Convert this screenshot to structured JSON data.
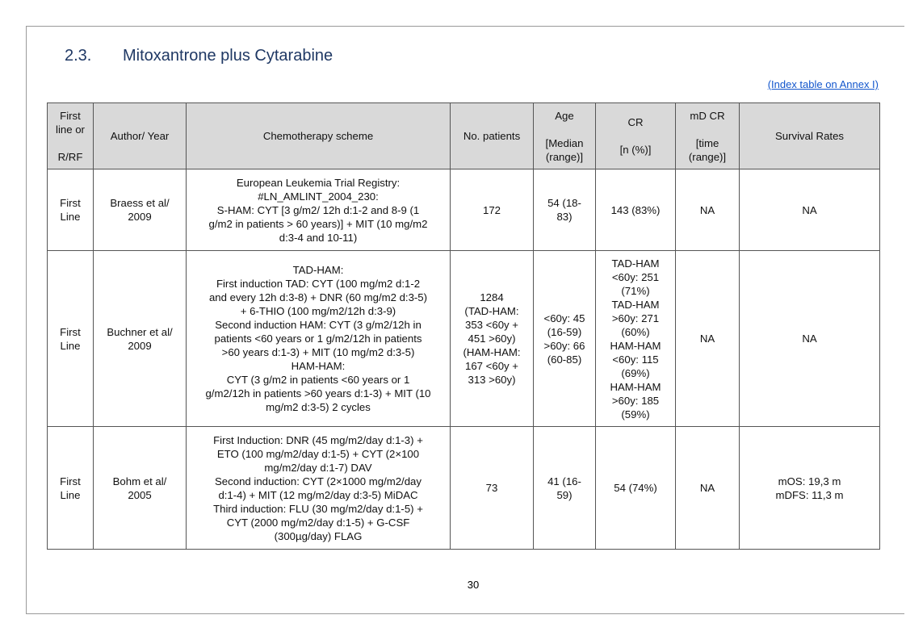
{
  "section": {
    "number": "2.3.",
    "title": "Mitoxantrone plus Cytarabine"
  },
  "index_link": "(Index table on Annex I)",
  "table": {
    "headers": [
      "First\nline or\n\nR/RF",
      "Author/ Year",
      "Chemotherapy scheme",
      "No. patients",
      "Age\n\n[Median\n(range)]",
      "CR\n\n[n (%)]",
      "mD CR\n\n[time\n(range)]",
      "Survival Rates"
    ],
    "rows": [
      [
        "First\nLine",
        "Braess et al/\n2009",
        "European Leukemia Trial Registry:\n#LN_AMLINT_2004_230:\nS-HAM:  CYT [3 g/m2/ 12h d:1-2 and 8-9 (1\ng/m2 in patients > 60 years)] + MIT (10 mg/m2\nd:3-4 and 10-11)",
        "172",
        "54 (18-\n83)",
        "143 (83%)",
        "NA",
        "NA"
      ],
      [
        "First\nLine",
        "Buchner et al/\n2009",
        "TAD-HAM:\nFirst induction TAD: CYT (100 mg/m2  d:1-2\nand every 12h d:3-8) + DNR (60 mg/m2 d:3-5)\n+ 6-THIO (100 mg/m2/12h d:3-9)\nSecond induction HAM: CYT (3 g/m2/12h in\npatients <60 years or 1 g/m2/12h in patients\n>60 years d:1-3) + MIT (10 mg/m2  d:3-5)\nHAM-HAM:\nCYT (3 g/m2 in patients <60 years or 1\ng/m2/12h in patients >60 years d:1-3) + MIT (10\nmg/m2  d:3-5) 2 cycles",
        "1284\n(TAD-HAM:\n353 <60y +\n451 >60y)\n(HAM-HAM:\n167 <60y +\n313 >60y)",
        "<60y: 45\n(16-59)\n>60y: 66\n(60-85)",
        "TAD-HAM\n<60y: 251\n(71%)\nTAD-HAM\n>60y: 271\n(60%)\nHAM-HAM\n<60y: 115\n(69%)\nHAM-HAM\n>60y: 185\n(59%)",
        "NA",
        "NA"
      ],
      [
        "First\nLine",
        "Bohm et al/\n2005",
        "First Induction: DNR (45 mg/m2/day  d:1-3) +\nETO (100 mg/m2/day d:1-5) + CYT (2×100\nmg/m2/day  d:1-7) DAV\nSecond induction: CYT (2×1000 mg/m2/day\nd:1-4) + MIT (12 mg/m2/day  d:3-5) MiDAC\nThird induction: FLU (30 mg/m2/day  d:1-5) +\nCYT (2000 mg/m2/day  d:1-5) + G-CSF\n(300µg/day) FLAG",
        "73",
        "41 (16-\n59)",
        "54 (74%)",
        "NA",
        "mOS: 19,3 m\nmDFS: 11,3 m"
      ]
    ]
  },
  "page_number": "30"
}
